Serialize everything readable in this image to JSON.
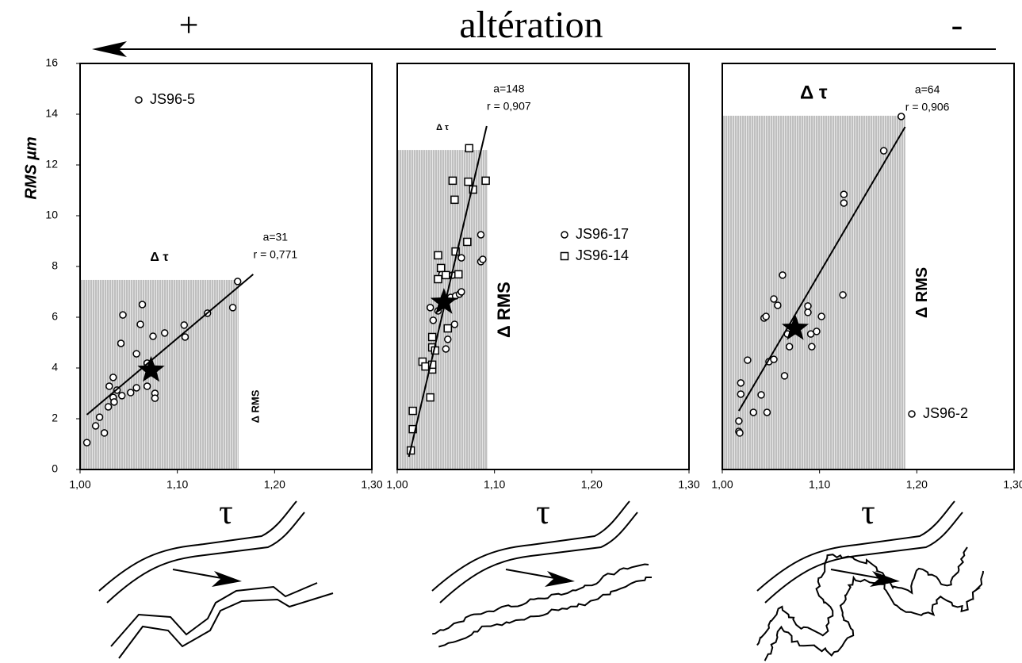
{
  "header": {
    "title": "altération",
    "plus": "+",
    "minus": "-"
  },
  "chart_data": [
    {
      "type": "scatter",
      "xlabel": "τ",
      "ylabel": "RMS  µm",
      "xlim": [
        1.0,
        1.3
      ],
      "ylim": [
        0,
        16
      ],
      "xticks": [
        {
          "value": 1.0,
          "label": "1,00"
        },
        {
          "value": 1.1,
          "label": "1,10"
        },
        {
          "value": 1.2,
          "label": "1,20"
        },
        {
          "value": 1.3,
          "label": "1,30"
        }
      ],
      "yticks": [
        0,
        2,
        4,
        6,
        8,
        10,
        12,
        14,
        16
      ],
      "legend": "upper left",
      "series": [
        {
          "name": "JS96-5",
          "marker": "circle",
          "color": "#000000",
          "x": [
            1.007,
            1.016,
            1.02,
            1.025,
            1.029,
            1.03,
            1.034,
            1.034,
            1.035,
            1.038,
            1.043,
            1.044,
            1.042,
            1.052,
            1.058,
            1.058,
            1.062,
            1.064,
            1.069,
            1.069,
            1.075,
            1.077,
            1.077,
            1.087,
            1.107,
            1.108,
            1.131,
            1.157,
            1.162
          ],
          "values": [
            1.06,
            1.72,
            2.06,
            1.44,
            2.47,
            3.28,
            3.63,
            2.84,
            2.66,
            3.13,
            2.91,
            6.09,
            4.97,
            3.03,
            4.56,
            3.22,
            5.72,
            6.5,
            3.28,
            4.19,
            5.25,
            3.0,
            2.81,
            5.38,
            5.69,
            5.22,
            6.16,
            6.38,
            7.41
          ]
        }
      ],
      "fit": {
        "x": [
          1.007,
          1.178
        ],
        "y": [
          2.16,
          7.69
        ],
        "a": "a=31",
        "r": "r = 0,771"
      },
      "mean": {
        "x": 1.073,
        "y": 3.91
      },
      "delta": {
        "x": 1.163,
        "y": 7.47,
        "tau_label": "Δ τ",
        "rms_label": "Δ RMS"
      }
    },
    {
      "type": "scatter",
      "xlabel": "τ",
      "xlim": [
        1.0,
        1.3
      ],
      "ylim": [
        0,
        16
      ],
      "xticks": [
        {
          "value": 1.0,
          "label": "1,00"
        },
        {
          "value": 1.1,
          "label": "1,10"
        },
        {
          "value": 1.2,
          "label": "1,20"
        },
        {
          "value": 1.3,
          "label": "1,30"
        }
      ],
      "legend": "center right",
      "series": [
        {
          "name": "JS96-17",
          "marker": "circle",
          "color": "#000000",
          "x": [
            1.034,
            1.037,
            1.042,
            1.046,
            1.05,
            1.052,
            1.055,
            1.057,
            1.059,
            1.06,
            1.064,
            1.066,
            1.066,
            1.086,
            1.086,
            1.088
          ],
          "values": [
            6.38,
            5.88,
            6.25,
            7.69,
            4.75,
            5.13,
            6.78,
            7.66,
            5.72,
            6.84,
            6.91,
            7.0,
            8.34,
            9.25,
            8.19,
            8.28
          ]
        },
        {
          "name": "JS96-14",
          "marker": "square",
          "color": "#000000",
          "x": [
            1.014,
            1.016,
            1.016,
            1.026,
            1.029,
            1.034,
            1.036,
            1.036,
            1.036,
            1.036,
            1.039,
            1.042,
            1.042,
            1.045,
            1.05,
            1.052,
            1.057,
            1.059,
            1.06,
            1.063,
            1.072,
            1.073,
            1.074,
            1.078,
            1.091
          ],
          "values": [
            0.75,
            1.59,
            2.31,
            4.25,
            4.06,
            2.84,
            4.81,
            3.94,
            4.13,
            5.22,
            4.69,
            8.44,
            7.5,
            7.94,
            7.66,
            5.56,
            11.38,
            10.63,
            8.59,
            7.69,
            8.97,
            11.34,
            12.66,
            11.03,
            11.38
          ]
        }
      ],
      "fit": {
        "x": [
          1.012,
          1.092
        ],
        "y": [
          0.5,
          13.53
        ],
        "a": "a=148",
        "r": "r = 0,907"
      },
      "mean": {
        "x": 1.048,
        "y": 6.59
      },
      "delta": {
        "x": 1.093,
        "y": 12.59,
        "tau_label": "Δ τ",
        "rms_label": "Δ RMS"
      }
    },
    {
      "type": "scatter",
      "xlabel": "τ",
      "xlim": [
        1.0,
        1.3
      ],
      "ylim": [
        0,
        16
      ],
      "xticks": [
        {
          "value": 1.0,
          "label": "1,00"
        },
        {
          "value": 1.1,
          "label": "1,10"
        },
        {
          "value": 1.2,
          "label": "1,20"
        },
        {
          "value": 1.3,
          "label": "1,30"
        }
      ],
      "legend": "lower right",
      "series": [
        {
          "name": "JS96-2",
          "marker": "circle",
          "color": "#000000",
          "x": [
            1.017,
            1.017,
            1.018,
            1.019,
            1.019,
            1.026,
            1.032,
            1.04,
            1.043,
            1.045,
            1.046,
            1.048,
            1.053,
            1.053,
            1.057,
            1.062,
            1.064,
            1.067,
            1.069,
            1.088,
            1.088,
            1.091,
            1.092,
            1.097,
            1.102,
            1.124,
            1.125,
            1.125,
            1.166,
            1.184
          ],
          "values": [
            1.91,
            1.5,
            1.44,
            2.97,
            3.41,
            4.31,
            2.25,
            2.94,
            5.97,
            6.03,
            2.25,
            4.25,
            4.34,
            6.72,
            6.47,
            7.66,
            3.69,
            5.34,
            4.84,
            6.19,
            6.44,
            5.34,
            4.84,
            5.44,
            6.03,
            6.88,
            10.84,
            10.5,
            12.56,
            13.91
          ]
        }
      ],
      "fit": {
        "x": [
          1.017,
          1.188
        ],
        "y": [
          2.31,
          13.5
        ],
        "a": "a=64",
        "r": "r = 0,906"
      },
      "mean": {
        "x": 1.075,
        "y": 5.56
      },
      "delta": {
        "x": 1.188,
        "y": 13.94,
        "tau_label": "Δ τ",
        "rms_label": "Δ RMS"
      }
    }
  ]
}
